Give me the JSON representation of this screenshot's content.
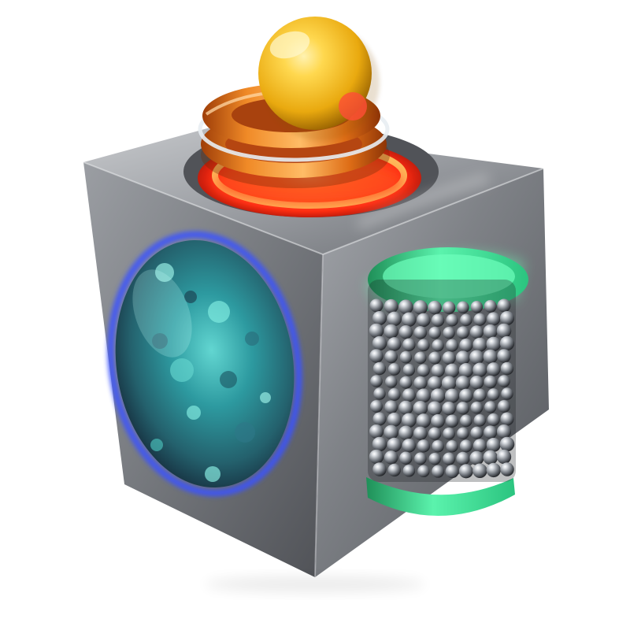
{
  "scene": {
    "background_color": "#ffffff",
    "subject": "metal-cube-fidget-toy",
    "components": [
      {
        "name": "yellow-ball",
        "color": "#f3c21b"
      },
      {
        "name": "orange-ring-stack",
        "color": "#e0761c"
      },
      {
        "name": "red-glow-socket",
        "color": "#ff3b1d"
      },
      {
        "name": "cube-body",
        "color": "#8e9196"
      },
      {
        "name": "textured-disk",
        "color": "#2f8b8a"
      },
      {
        "name": "blue-rim-light",
        "color": "#3f52d8"
      },
      {
        "name": "green-cylinder",
        "color": "#43e79a"
      },
      {
        "name": "steel-ball-bearings",
        "color": "#c9cdd2"
      }
    ]
  }
}
